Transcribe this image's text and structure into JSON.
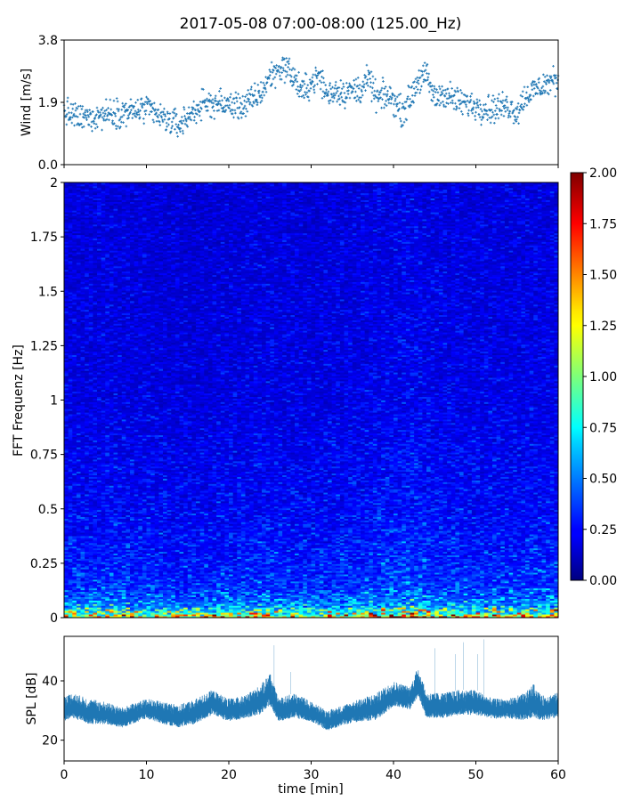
{
  "figure": {
    "title": "2017-05-08 07:00-08:00 (125.00_Hz)"
  },
  "chart_data": [
    {
      "type": "scatter",
      "id": "wind",
      "ylabel": "Wind [m/s]",
      "xlim": [
        0,
        60
      ],
      "ylim": [
        0,
        3.8
      ],
      "yticks": [
        0.0,
        1.9,
        3.8
      ],
      "ytick_labels": [
        "0.0",
        "1.9",
        "3.8"
      ],
      "color": "#1f77b4",
      "sample_interval_min": 0.05,
      "trend": {
        "x": [
          0,
          2,
          4,
          6,
          8,
          10,
          12,
          14,
          16,
          18,
          20,
          22,
          24,
          25,
          26,
          27,
          28,
          29,
          30,
          31,
          32,
          33,
          34,
          36,
          37,
          38,
          39,
          40,
          41,
          42,
          43,
          44,
          45,
          46,
          48,
          50,
          52,
          54,
          55,
          56,
          58,
          60
        ],
        "y": [
          1.6,
          1.4,
          1.5,
          1.6,
          1.6,
          1.7,
          1.4,
          1.2,
          1.7,
          1.9,
          1.8,
          1.8,
          2.2,
          2.7,
          2.9,
          3.0,
          2.6,
          2.2,
          2.5,
          2.7,
          2.1,
          2.3,
          2.2,
          2.3,
          2.6,
          2.0,
          2.1,
          2.0,
          1.6,
          2.0,
          2.6,
          2.7,
          2.0,
          2.2,
          1.9,
          1.8,
          1.7,
          1.8,
          1.6,
          2.1,
          2.4,
          2.6
        ]
      },
      "spread": 0.42
    },
    {
      "type": "heatmap",
      "id": "spectrogram",
      "ylabel": "FFT Frequenz [Hz]",
      "xlim": [
        0,
        60
      ],
      "ylim": [
        0,
        2
      ],
      "yticks": [
        0,
        0.25,
        0.5,
        0.75,
        1,
        1.25,
        1.5,
        1.75,
        2
      ],
      "ytick_labels": [
        "0",
        "0.25",
        "0.5",
        "0.75",
        "1",
        "1.25",
        "1.5",
        "1.75",
        "2"
      ],
      "colormap": "jet",
      "colorbar": {
        "range": [
          0.0,
          2.0
        ],
        "ticks": [
          0.0,
          0.25,
          0.5,
          0.75,
          1.0,
          1.25,
          1.5,
          1.75,
          2.0
        ],
        "tick_labels": [
          "0.00",
          "0.25",
          "0.50",
          "0.75",
          "1.00",
          "1.25",
          "1.50",
          "1.75",
          "2.00"
        ]
      },
      "frequency_profile": {
        "freq": [
          0.0,
          0.02,
          0.05,
          0.1,
          0.15,
          0.25,
          0.5,
          0.75,
          1.0,
          1.5,
          2.0
        ],
        "level": [
          1.45,
          0.9,
          0.62,
          0.45,
          0.38,
          0.33,
          0.27,
          0.25,
          0.22,
          0.21,
          0.2
        ]
      },
      "time_modulation": {
        "x": [
          0,
          5,
          10,
          15,
          20,
          25,
          30,
          35,
          38,
          42,
          45,
          50,
          55,
          60
        ],
        "factor": [
          1.0,
          1.05,
          1.0,
          0.95,
          1.0,
          1.05,
          1.0,
          1.05,
          1.1,
          1.2,
          1.1,
          1.05,
          1.05,
          1.1
        ]
      },
      "n_time_bins": 120,
      "n_freq_bins": 250
    },
    {
      "type": "area",
      "id": "spl",
      "ylabel": "SPL [dB]",
      "xlabel": "time [min]",
      "xlim": [
        0,
        60
      ],
      "ylim": [
        13,
        55
      ],
      "yticks": [
        20,
        40
      ],
      "ytick_labels": [
        "20",
        "40"
      ],
      "xticks": [
        0,
        10,
        20,
        30,
        40,
        50,
        60
      ],
      "xtick_labels": [
        "0",
        "10",
        "20",
        "30",
        "40",
        "50",
        "60"
      ],
      "color": "#1f77b4",
      "envelope": {
        "x": [
          0,
          1,
          3,
          5,
          7,
          9,
          10,
          12,
          14,
          16,
          18,
          20,
          22,
          24,
          25,
          26,
          28,
          30,
          32,
          34,
          36,
          38,
          40,
          42,
          43,
          44,
          46,
          48,
          50,
          52,
          54,
          56,
          57,
          58,
          60
        ],
        "low": [
          25,
          26,
          24,
          24,
          23,
          25,
          26,
          24,
          23,
          24,
          27,
          25,
          26,
          27,
          30,
          25,
          26,
          25,
          22,
          24,
          25,
          25,
          30,
          29,
          33,
          26,
          26,
          27,
          27,
          26,
          26,
          25,
          26,
          25,
          26
        ],
        "high": [
          35,
          36,
          34,
          33,
          31,
          33,
          34,
          33,
          32,
          34,
          37,
          34,
          35,
          39,
          43,
          34,
          36,
          33,
          30,
          32,
          34,
          36,
          40,
          38,
          45,
          36,
          36,
          37,
          37,
          34,
          34,
          36,
          39,
          35,
          36
        ]
      },
      "spikes": [
        {
          "x": 25.5,
          "y": 52
        },
        {
          "x": 27.5,
          "y": 43
        },
        {
          "x": 45.0,
          "y": 51
        },
        {
          "x": 47.5,
          "y": 49
        },
        {
          "x": 48.5,
          "y": 53
        },
        {
          "x": 50.2,
          "y": 49
        },
        {
          "x": 51.0,
          "y": 54
        }
      ]
    }
  ]
}
